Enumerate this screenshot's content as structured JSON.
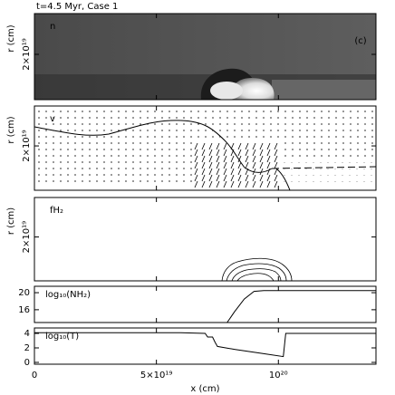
{
  "chart_data": [
    {
      "type": "image",
      "title": "t=4.5 Myr, Case 1",
      "label": "n",
      "annotation": "(c)",
      "ylabel": "r (cm)",
      "ylim": [
        0,
        3.8e+19
      ],
      "yticks": [
        {
          "value": 2e+19,
          "label": "2×10¹⁹"
        }
      ]
    },
    {
      "type": "quiver",
      "label": "v",
      "ylabel": "r (cm)",
      "ylim": [
        0,
        3.8e+19
      ],
      "yticks": [
        {
          "value": 2e+19,
          "label": "2×10¹⁹"
        }
      ]
    },
    {
      "type": "contour",
      "label": "fH₂",
      "ylabel": "r (cm)",
      "ylim": [
        0,
        3.8e+19
      ],
      "yticks": [
        {
          "value": 2e+19,
          "label": "2×10¹⁹"
        }
      ]
    },
    {
      "type": "line",
      "label": "log₁₀(NH₂)",
      "ylim": [
        13,
        21.5
      ],
      "yticks": [
        16,
        20
      ],
      "x": [
        7.9e+19,
        8.2e+19,
        8.6e+19,
        9e+19,
        9.4e+19,
        1.4e+20
      ],
      "values": [
        13,
        15.5,
        18.5,
        20.3,
        20.5,
        20.5
      ]
    },
    {
      "type": "line",
      "label": "log₁₀(T)",
      "ylim": [
        -0.25,
        4.75
      ],
      "yticks": [
        0,
        2,
        4
      ],
      "x": [
        0,
        6e+19,
        7e+19,
        7.1e+19,
        7.3e+19,
        7.4e+19,
        7.5e+19,
        8.2e+19,
        9.4e+19,
        1.02e+20,
        1.03e+20,
        1.4e+20
      ],
      "values": [
        4.1,
        4.1,
        4.0,
        3.5,
        3.5,
        2.8,
        2.2,
        1.8,
        1.2,
        0.8,
        4.0,
        4.0
      ],
      "xlabel": "x (cm)",
      "xlim": [
        0,
        1.4e+20
      ],
      "xticks": [
        0,
        {
          "value": 5e+19,
          "label": "5×10¹⁹"
        },
        {
          "value": 1e+20,
          "label": "10²⁰"
        }
      ]
    }
  ]
}
